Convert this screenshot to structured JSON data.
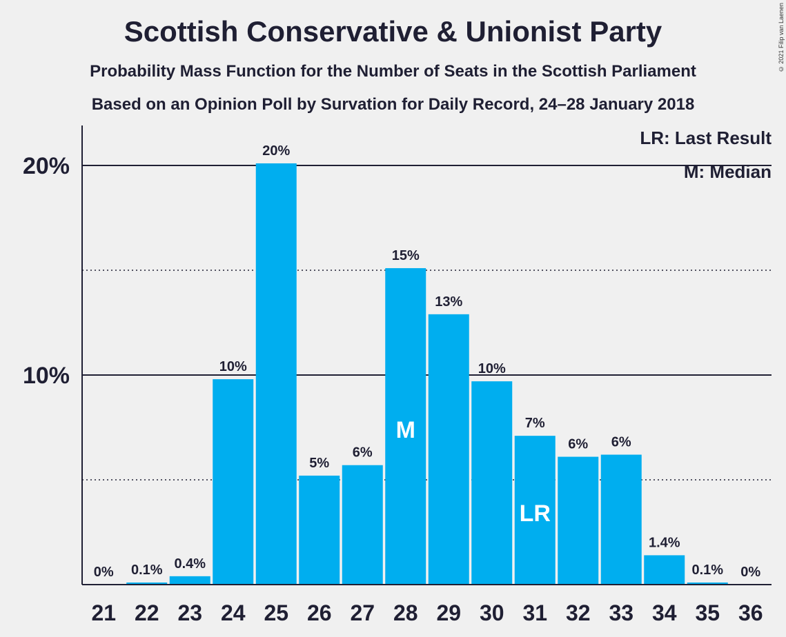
{
  "title": "Scottish Conservative & Unionist Party",
  "subtitle1": "Probability Mass Function for the Number of Seats in the Scottish Parliament",
  "subtitle2": "Based on an Opinion Poll by Survation for Daily Record, 24–28 January 2018",
  "copyright": "© 2021 Filip van Laenen",
  "legend": {
    "last_result": "LR: Last Result",
    "median": "M: Median"
  },
  "colors": {
    "bar": "#00aeef",
    "background": "#f0f0f0",
    "text": "#1f1f33"
  },
  "chart_data": {
    "type": "bar",
    "categories": [
      "21",
      "22",
      "23",
      "24",
      "25",
      "26",
      "27",
      "28",
      "29",
      "30",
      "31",
      "32",
      "33",
      "34",
      "35",
      "36"
    ],
    "values": [
      0,
      0.1,
      0.4,
      9.8,
      20.1,
      5.2,
      5.7,
      15.1,
      12.9,
      9.7,
      7.1,
      6.1,
      6.2,
      1.4,
      0.1,
      0
    ],
    "data_labels": [
      "0%",
      "0.1%",
      "0.4%",
      "10%",
      "20%",
      "5%",
      "6%",
      "15%",
      "13%",
      "10%",
      "7%",
      "6%",
      "6%",
      "1.4%",
      "0.1%",
      "0%"
    ],
    "y_ticks": [
      {
        "value": 10,
        "label": "10%"
      },
      {
        "value": 20,
        "label": "20%"
      }
    ],
    "ylim": [
      0,
      22
    ],
    "median_seat": "28",
    "median_marker": "M",
    "last_result_seat": "31",
    "last_result_marker": "LR",
    "grid": "solid lines at 10% and 20%, dotted at 5% and 15%"
  }
}
